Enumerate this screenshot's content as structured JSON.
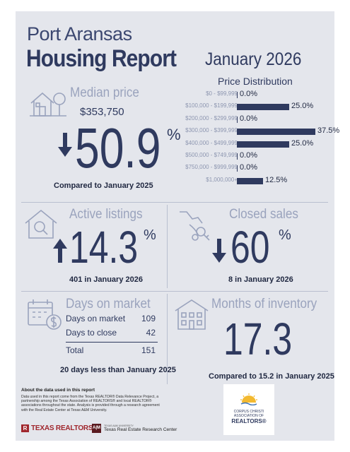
{
  "header": {
    "city": "Port Aransas",
    "title": "Housing Report",
    "month": "January 2026"
  },
  "median_price": {
    "title": "Median price",
    "price": "$353,750",
    "arrow": "down",
    "change_value": "50.9",
    "change_unit": "%",
    "comparison": "Compared to January 2025"
  },
  "price_distribution": {
    "title": "Price Distribution",
    "rows": [
      {
        "range": "$0 - $99,999",
        "value": "0.0%"
      },
      {
        "range": "$100,000 - $199,999",
        "value": "25.0%"
      },
      {
        "range": "$200,000 - $299,999",
        "value": "0.0%"
      },
      {
        "range": "$300,000 - $399,999",
        "value": "37.5%"
      },
      {
        "range": "$400,000 - $499,999",
        "value": "25.0%"
      },
      {
        "range": "$500,000 - $749,999",
        "value": "0.0%"
      },
      {
        "range": "$750,000 - $999,999",
        "value": "0.0%"
      },
      {
        "range": "$1,000,000+",
        "value": "12.5%"
      }
    ]
  },
  "chart_data": {
    "type": "bar",
    "title": "Price Distribution",
    "categories": [
      "$0 - $99,999",
      "$100,000 - $199,999",
      "$200,000 - $299,999",
      "$300,000 - $399,999",
      "$400,000 - $499,999",
      "$500,000 - $749,999",
      "$750,000 - $999,999",
      "$1,000,000+"
    ],
    "values": [
      0.0,
      25.0,
      0.0,
      37.5,
      25.0,
      0.0,
      0.0,
      12.5
    ],
    "orientation": "horizontal",
    "xlim": [
      0,
      37.5
    ]
  },
  "active_listings": {
    "title": "Active listings",
    "arrow": "up",
    "change_value": "14.3",
    "change_unit": "%",
    "note": "401 in January 2026"
  },
  "closed_sales": {
    "title": "Closed sales",
    "arrow": "down",
    "change_value": "60",
    "change_unit": "%",
    "note": "8 in January 2026"
  },
  "days_on_market": {
    "title": "Days on market",
    "rows": [
      {
        "label": "Days on market",
        "value": "109"
      },
      {
        "label": "Days to close",
        "value": "42"
      }
    ],
    "total_label": "Total",
    "total_value": "151",
    "note": "20 days less than January 2025"
  },
  "months_inventory": {
    "title": "Months of inventory",
    "value": "17.3",
    "note": "Compared to 15.2 in January 2025"
  },
  "footer": {
    "about_title": "About the data used in this report",
    "about_text": "Data used in this report come from the Texas REALTOR® Data Relevance Project, a partnership among the Texas Association of REALTORS® and local REALTOR® associations throughout the state. Analysis is provided through a research agreement with the Real Estate Center at Texas A&M University.",
    "tr_logo": "TEXAS REALTORS",
    "center_small": "TEXAS A&M UNIVERSITY",
    "center_name": "Texas Real Estate Research Center",
    "assoc_line1": "CORPUS CHRISTI",
    "assoc_line2": "ASSOCIATION OF",
    "assoc_line3": "REALTORS®"
  },
  "colors": {
    "navy": "#2f3a5f",
    "muted": "#9aa3bd",
    "card": "#e4e6ec",
    "tr_red": "#a0272d",
    "sun": "#f3b92f"
  }
}
